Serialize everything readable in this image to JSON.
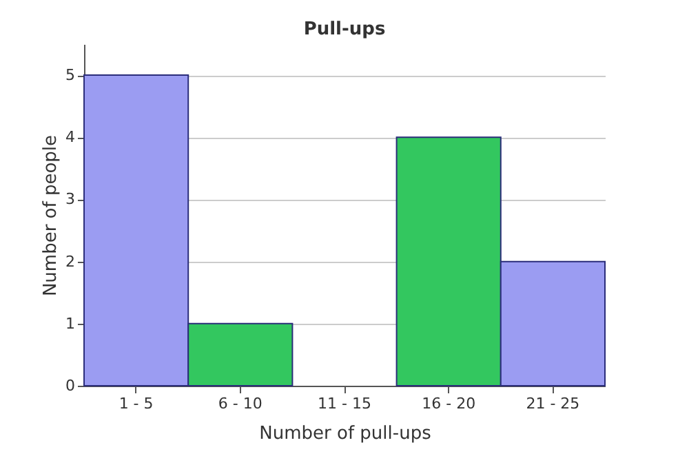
{
  "chart_data": {
    "type": "bar",
    "title": "Pull-ups",
    "xlabel": "Number of pull-ups",
    "ylabel": "Number of people",
    "categories": [
      "1 - 5",
      "6 - 10",
      "11 - 15",
      "16 - 20",
      "21 - 25"
    ],
    "values": [
      5,
      1,
      0,
      4,
      2
    ],
    "colors": [
      "#9b9cf2",
      "#33c75f",
      null,
      "#33c75f",
      "#9b9cf2"
    ],
    "ylim": [
      0,
      5.5
    ],
    "yticks": [
      0,
      1,
      2,
      3,
      4,
      5
    ],
    "grid": "y"
  }
}
